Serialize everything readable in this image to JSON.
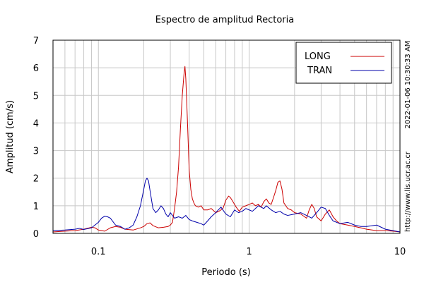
{
  "chart_data": {
    "type": "line",
    "title": "Espectro de amplitud Rectoria",
    "xlabel": "Periodo (s)",
    "ylabel": "Amplitud (cm/s)",
    "xscale": "log",
    "xlim": [
      0.05,
      10
    ],
    "ylim": [
      0,
      7
    ],
    "x_ticks": [
      0.1,
      1,
      10
    ],
    "x_tick_labels": [
      "0.1",
      "1",
      "10"
    ],
    "y_ticks": [
      0,
      1,
      2,
      3,
      4,
      5,
      6,
      7
    ],
    "y_tick_labels": [
      "0",
      "1",
      "2",
      "3",
      "4",
      "5",
      "6",
      "7"
    ],
    "grid": true,
    "legend_position": "top-right",
    "colors": {
      "LONG": "#cc0000",
      "TRAN": "#0000aa"
    },
    "series": [
      {
        "name": "LONG",
        "color": "#cc0000",
        "x": [
          0.05,
          0.06,
          0.07,
          0.08,
          0.09,
          0.095,
          0.1,
          0.11,
          0.12,
          0.13,
          0.14,
          0.15,
          0.17,
          0.19,
          0.2,
          0.21,
          0.22,
          0.23,
          0.25,
          0.27,
          0.29,
          0.3,
          0.31,
          0.32,
          0.33,
          0.34,
          0.35,
          0.36,
          0.37,
          0.375,
          0.38,
          0.39,
          0.4,
          0.41,
          0.42,
          0.43,
          0.44,
          0.46,
          0.48,
          0.5,
          0.53,
          0.56,
          0.6,
          0.63,
          0.67,
          0.7,
          0.73,
          0.75,
          0.78,
          0.82,
          0.86,
          0.9,
          0.95,
          1.0,
          1.05,
          1.1,
          1.15,
          1.2,
          1.25,
          1.3,
          1.35,
          1.4,
          1.45,
          1.5,
          1.55,
          1.6,
          1.65,
          1.7,
          1.8,
          1.9,
          2.0,
          2.2,
          2.4,
          2.5,
          2.6,
          2.7,
          2.8,
          3.0,
          3.2,
          3.4,
          3.6,
          3.8,
          4.0,
          4.5,
          5.0,
          5.5,
          6.0,
          7.0,
          8.0,
          9.0,
          10.0
        ],
        "y": [
          0.05,
          0.08,
          0.1,
          0.15,
          0.22,
          0.2,
          0.12,
          0.08,
          0.2,
          0.25,
          0.22,
          0.15,
          0.12,
          0.2,
          0.25,
          0.35,
          0.38,
          0.28,
          0.2,
          0.22,
          0.25,
          0.3,
          0.4,
          0.9,
          1.5,
          2.4,
          3.8,
          5.0,
          5.8,
          6.05,
          5.6,
          4.0,
          2.3,
          1.6,
          1.25,
          1.1,
          1.0,
          0.95,
          1.0,
          0.85,
          0.85,
          0.9,
          0.75,
          0.8,
          0.9,
          1.2,
          1.35,
          1.3,
          1.15,
          0.95,
          0.8,
          0.95,
          1.0,
          1.05,
          1.1,
          1.0,
          1.05,
          0.95,
          1.15,
          1.25,
          1.1,
          1.05,
          1.3,
          1.55,
          1.85,
          1.9,
          1.6,
          1.1,
          0.9,
          0.85,
          0.75,
          0.7,
          0.55,
          0.85,
          1.05,
          0.9,
          0.6,
          0.45,
          0.7,
          0.85,
          0.6,
          0.45,
          0.35,
          0.3,
          0.25,
          0.2,
          0.15,
          0.1,
          0.1,
          0.08,
          0.05
        ]
      },
      {
        "name": "TRAN",
        "color": "#0000aa",
        "x": [
          0.05,
          0.06,
          0.07,
          0.075,
          0.08,
          0.09,
          0.1,
          0.105,
          0.11,
          0.115,
          0.12,
          0.13,
          0.14,
          0.15,
          0.16,
          0.17,
          0.18,
          0.19,
          0.2,
          0.205,
          0.21,
          0.215,
          0.22,
          0.23,
          0.24,
          0.25,
          0.26,
          0.27,
          0.28,
          0.29,
          0.3,
          0.32,
          0.34,
          0.36,
          0.38,
          0.4,
          0.42,
          0.45,
          0.48,
          0.5,
          0.53,
          0.56,
          0.6,
          0.65,
          0.7,
          0.75,
          0.8,
          0.85,
          0.9,
          0.95,
          1.0,
          1.05,
          1.1,
          1.15,
          1.2,
          1.25,
          1.3,
          1.4,
          1.5,
          1.6,
          1.7,
          1.8,
          2.0,
          2.2,
          2.4,
          2.6,
          2.8,
          3.0,
          3.2,
          3.4,
          3.6,
          3.8,
          4.0,
          4.5,
          5.0,
          5.5,
          6.0,
          7.0,
          8.0,
          9.0,
          10.0
        ],
        "y": [
          0.1,
          0.12,
          0.15,
          0.18,
          0.14,
          0.2,
          0.4,
          0.55,
          0.62,
          0.6,
          0.55,
          0.3,
          0.25,
          0.15,
          0.2,
          0.3,
          0.6,
          1.0,
          1.6,
          1.9,
          2.0,
          1.9,
          1.55,
          0.9,
          0.75,
          0.85,
          1.0,
          0.9,
          0.7,
          0.6,
          0.75,
          0.55,
          0.6,
          0.55,
          0.65,
          0.5,
          0.45,
          0.4,
          0.35,
          0.3,
          0.45,
          0.6,
          0.75,
          0.95,
          0.7,
          0.6,
          0.85,
          0.75,
          0.8,
          0.9,
          0.85,
          0.8,
          0.9,
          1.0,
          0.95,
          0.9,
          1.0,
          0.85,
          0.75,
          0.8,
          0.7,
          0.65,
          0.7,
          0.75,
          0.65,
          0.55,
          0.75,
          0.95,
          0.9,
          0.65,
          0.45,
          0.4,
          0.35,
          0.4,
          0.3,
          0.25,
          0.25,
          0.3,
          0.15,
          0.1,
          0.05
        ]
      }
    ]
  },
  "side_labels": {
    "timestamp": "2022-01-06 10:30:33 AM",
    "url": "http://www.lis.ucr.ac.cr"
  }
}
